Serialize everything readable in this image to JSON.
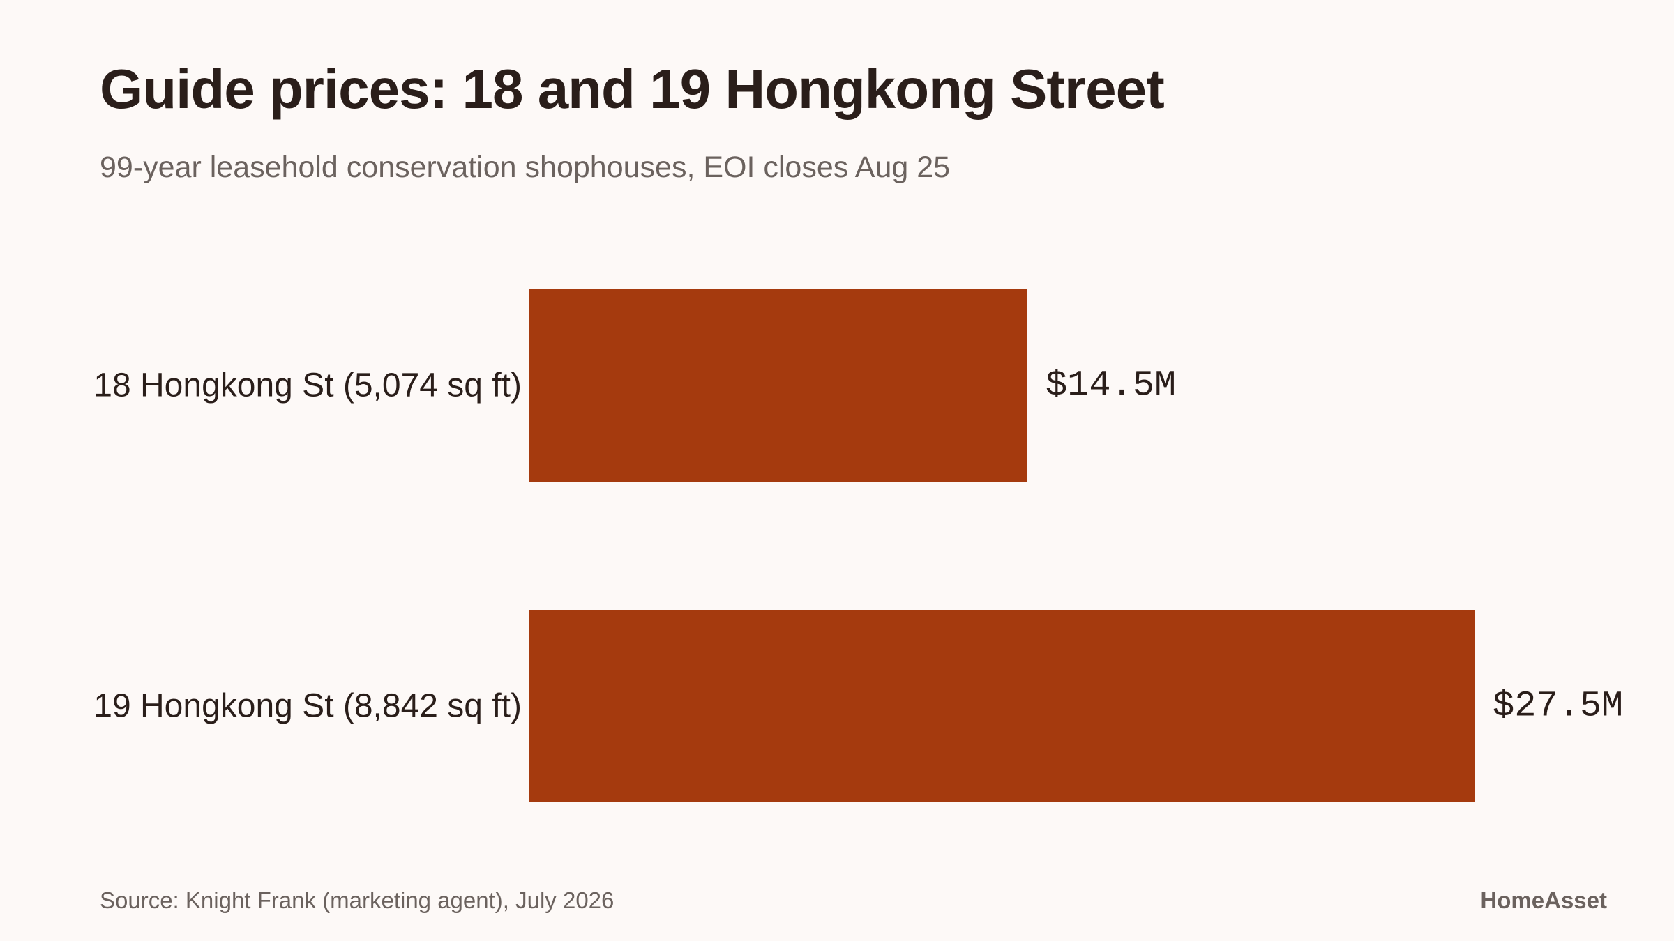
{
  "header": {
    "title": "Guide prices: 18 and 19 Hongkong Street",
    "subtitle": "99-year leasehold conservation shophouses, EOI closes Aug 25"
  },
  "footer": {
    "source": "Source: Knight Frank (marketing agent), July 2026",
    "brand": "HomeAsset"
  },
  "colors": {
    "background": "#fdf9f7",
    "bar": "#a53a0e",
    "text": "#2a1e1a",
    "muted": "#6b625e"
  },
  "chart_data": {
    "type": "bar",
    "orientation": "horizontal",
    "title": "Guide prices: 18 and 19 Hongkong Street",
    "subtitle": "99-year leasehold conservation shophouses, EOI closes Aug 25",
    "categories": [
      "18 Hongkong St (5,074 sq ft)",
      "19 Hongkong St (8,842 sq ft)"
    ],
    "values": [
      14.5,
      27.5
    ],
    "value_labels": [
      "$14.5M",
      "$27.5M"
    ],
    "unit": "$M",
    "xlim": [
      0,
      27.5
    ],
    "grid": false,
    "legend": "none"
  }
}
